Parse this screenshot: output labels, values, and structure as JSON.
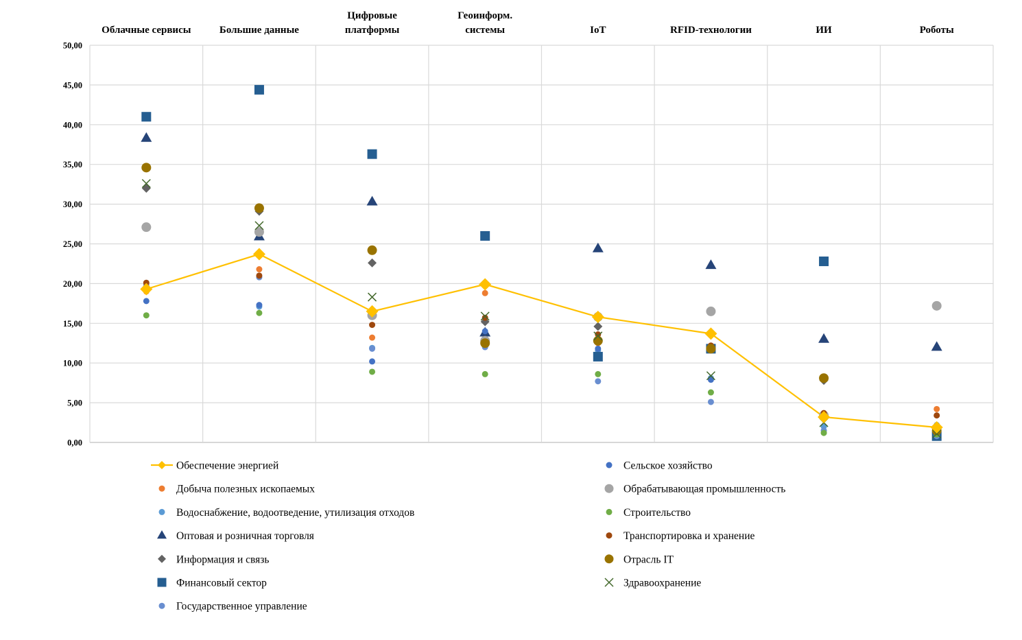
{
  "chart_data": {
    "type": "scatter",
    "categories": [
      [
        "Облачные сервисы"
      ],
      [
        "Большие данные"
      ],
      [
        "Цифровые",
        "платформы"
      ],
      [
        "Геоинформ.",
        "системы"
      ],
      [
        "IoT"
      ],
      [
        "RFID-технологии"
      ],
      [
        "ИИ"
      ],
      [
        "Роботы"
      ]
    ],
    "y_ticks": [
      "0,00",
      "5,00",
      "10,00",
      "15,00",
      "20,00",
      "25,00",
      "30,00",
      "35,00",
      "40,00",
      "45,00",
      "50,00"
    ],
    "ylim": [
      0,
      50
    ],
    "grid": true,
    "legend_position": "bottom",
    "series": [
      {
        "name": "Обеспечение энергией",
        "marker": "line-diamond",
        "color": "#FFC000",
        "size": 9,
        "values": [
          19.3,
          23.7,
          16.5,
          19.9,
          15.8,
          13.7,
          3.2,
          1.9
        ]
      },
      {
        "name": "Добыча полезных ископаемых",
        "marker": "circle",
        "color": "#ED7D31",
        "size": 4.5,
        "values": [
          19.0,
          21.8,
          13.2,
          18.8,
          12.5,
          13.8,
          3.6,
          4.2
        ]
      },
      {
        "name": "Водоснабжение, водоотведение, утилизация отходов",
        "marker": "circle",
        "color": "#5B9BD5",
        "size": 4.5,
        "values": [
          19.5,
          17.1,
          11.9,
          12.5,
          11.6,
          8.1,
          2.0,
          2.2
        ]
      },
      {
        "name": "Оптовая и розничная торговля",
        "marker": "triangle",
        "color": "#264478",
        "size": 8,
        "values": [
          38.3,
          25.9,
          30.3,
          13.8,
          24.4,
          22.3,
          13.0,
          12.0
        ]
      },
      {
        "name": "Информация и связь",
        "marker": "diamond",
        "color": "#636363",
        "size": 6.5,
        "values": [
          32.0,
          29.1,
          22.6,
          15.2,
          14.6,
          13.6,
          7.8,
          1.5
        ]
      },
      {
        "name": "Финансовый сектор",
        "marker": "square",
        "color": "#255E91",
        "size": 7,
        "values": [
          41.0,
          44.4,
          36.3,
          26.0,
          10.8,
          11.8,
          22.8,
          0.8
        ]
      },
      {
        "name": "Государственное управление",
        "marker": "circle",
        "color": "#698ED0",
        "size": 4.5,
        "values": [
          19.8,
          20.8,
          11.8,
          12.0,
          7.7,
          5.1,
          1.5,
          0.8
        ]
      },
      {
        "name": "Сельское хозяйство",
        "marker": "circle",
        "color": "#4472C4",
        "size": 4.5,
        "values": [
          17.8,
          17.3,
          10.2,
          14.0,
          11.8,
          7.9,
          3.0,
          1.2
        ]
      },
      {
        "name": "Обрабатывающая промышленность",
        "marker": "circle",
        "color": "#A5A5A5",
        "size": 7,
        "values": [
          27.1,
          26.5,
          16.0,
          12.8,
          15.8,
          16.5,
          3.4,
          17.2
        ]
      },
      {
        "name": "Строительство",
        "marker": "circle",
        "color": "#70AD47",
        "size": 4.5,
        "values": [
          16.0,
          16.3,
          8.9,
          8.6,
          8.6,
          6.3,
          1.2,
          1.0
        ]
      },
      {
        "name": "Транспортировка и хранение",
        "marker": "circle",
        "color": "#9E480E",
        "size": 4.5,
        "values": [
          20.1,
          21.0,
          14.8,
          15.7,
          13.6,
          12.2,
          3.7,
          3.4
        ]
      },
      {
        "name": "Отрасль IT",
        "marker": "circle",
        "color": "#997300",
        "size": 7,
        "values": [
          34.6,
          29.5,
          24.2,
          12.5,
          12.8,
          11.8,
          8.1,
          1.5
        ]
      },
      {
        "name": "Здравоохранение",
        "marker": "x",
        "color": "#43682B",
        "size": 6,
        "values": [
          32.6,
          27.3,
          18.3,
          15.9,
          13.4,
          8.4,
          2.5,
          1.1
        ]
      }
    ],
    "legend_columns": [
      [
        "Обеспечение энергией",
        "Добыча полезных ископаемых",
        "Водоснабжение, водоотведение, утилизация отходов",
        "Оптовая и розничная торговля",
        "Информация и связь",
        "Финансовый сектор",
        "Государственное управление"
      ],
      [
        "Сельское хозяйство",
        "Обрабатывающая промышленность",
        "Строительство",
        "Транспортировка и хранение",
        "Отрасль IT",
        "Здравоохранение"
      ]
    ]
  }
}
